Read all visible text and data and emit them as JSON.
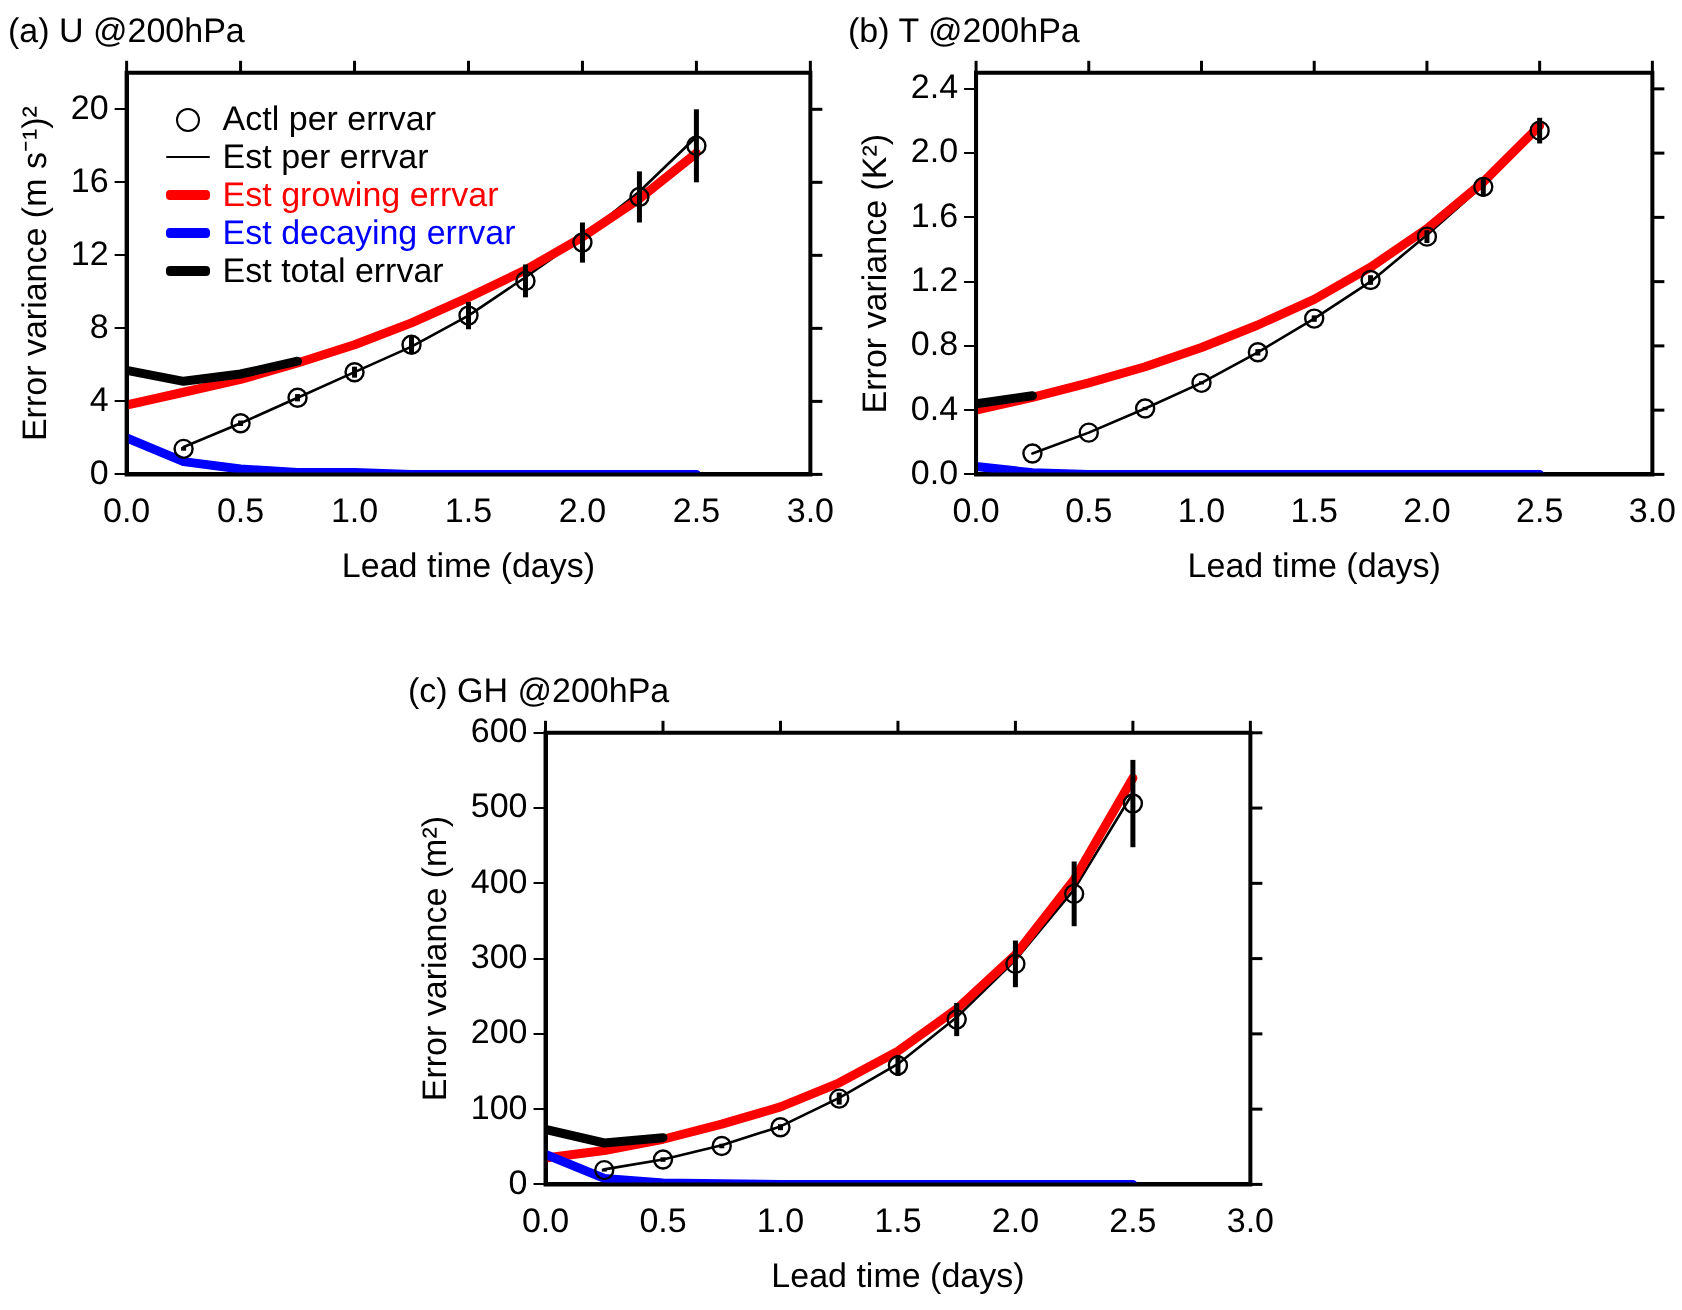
{
  "chart_data": [
    {
      "type": "line",
      "title": "(a) U @200hPa",
      "xlabel": "Lead time (days)",
      "ylabel": "Error variance (m s⁻¹)²",
      "xlim": [
        0,
        3
      ],
      "ylim": [
        0,
        22
      ],
      "xticks": [
        {
          "value": 0,
          "label": "0.0"
        },
        {
          "value": 0.5,
          "label": "0.5"
        },
        {
          "value": 1,
          "label": "1.0"
        },
        {
          "value": 1.5,
          "label": "1.5"
        },
        {
          "value": 2,
          "label": "2.0"
        },
        {
          "value": 2.5,
          "label": "2.5"
        },
        {
          "value": 3,
          "label": "3.0"
        }
      ],
      "yticks": [
        0,
        4,
        8,
        12,
        16,
        20
      ],
      "grid": false,
      "legend": "top left",
      "series": [
        {
          "name": "Actl per errvar",
          "type": "scatter",
          "marker": "circle",
          "color": "#000000",
          "x": [
            0.25,
            0.5,
            0.75,
            1,
            1.25,
            1.5,
            1.75,
            2,
            2.25,
            2.5
          ],
          "values": [
            1.4,
            2.8,
            4.2,
            5.6,
            7.1,
            8.7,
            10.6,
            12.7,
            15.2,
            18.0
          ],
          "errors": [
            0.1,
            0.15,
            0.2,
            0.3,
            0.5,
            0.75,
            0.9,
            1.1,
            1.4,
            2.0
          ]
        },
        {
          "name": "Est per errvar",
          "type": "line",
          "marker": "none",
          "color": "#000000",
          "x": [
            0.25,
            0.5,
            0.75,
            1,
            1.25,
            1.5,
            1.75,
            2,
            2.25,
            2.5
          ],
          "values": [
            1.5,
            2.8,
            4.2,
            5.6,
            7.0,
            8.7,
            10.8,
            13.0,
            15.5,
            18.5
          ]
        },
        {
          "name": "Est growing errvar",
          "type": "line",
          "marker": "none",
          "color": "#ff0000",
          "x": [
            0,
            0.25,
            0.5,
            0.75,
            1,
            1.25,
            1.5,
            1.75,
            2,
            2.25,
            2.5
          ],
          "values": [
            3.8,
            4.5,
            5.2,
            6.1,
            7.1,
            8.3,
            9.7,
            11.2,
            13.0,
            15.1,
            17.6
          ]
        },
        {
          "name": "Est decaying errvar",
          "type": "line",
          "marker": "none",
          "color": "#0000ff",
          "x": [
            0,
            0.25,
            0.5,
            0.75,
            1,
            1.25,
            1.5,
            1.75,
            2,
            2.25,
            2.5
          ],
          "values": [
            2.0,
            0.7,
            0.3,
            0.1,
            0.1,
            0,
            0,
            0,
            0,
            0,
            0
          ]
        },
        {
          "name": "Est total errvar",
          "type": "line",
          "marker": "none",
          "color": "#000000",
          "x": [
            0,
            0.25,
            0.5,
            0.75
          ],
          "values": [
            5.7,
            5.1,
            5.5,
            6.2
          ]
        }
      ]
    },
    {
      "type": "line",
      "title": "(b) T @200hPa",
      "xlabel": "Lead time (days)",
      "ylabel": "Error variance (K²)",
      "xlim": [
        0,
        3
      ],
      "ylim": [
        0,
        2.5
      ],
      "xticks": [
        {
          "value": 0,
          "label": "0.0"
        },
        {
          "value": 0.5,
          "label": "0.5"
        },
        {
          "value": 1,
          "label": "1.0"
        },
        {
          "value": 1.5,
          "label": "1.5"
        },
        {
          "value": 2,
          "label": "2.0"
        },
        {
          "value": 2.5,
          "label": "2.5"
        },
        {
          "value": 3,
          "label": "3.0"
        }
      ],
      "yticks": [
        {
          "value": 0,
          "label": "0.0"
        },
        {
          "value": 0.4,
          "label": "0.4"
        },
        {
          "value": 0.8,
          "label": "0.8"
        },
        {
          "value": 1.2,
          "label": "1.2"
        },
        {
          "value": 1.6,
          "label": "1.6"
        },
        {
          "value": 2,
          "label": "2.0"
        },
        {
          "value": 2.4,
          "label": "2.4"
        }
      ],
      "grid": false,
      "series": [
        {
          "type": "scatter",
          "marker": "circle",
          "color": "#000000",
          "x": [
            0.25,
            0.5,
            0.75,
            1,
            1.25,
            1.5,
            1.75,
            2,
            2.25,
            2.5
          ],
          "values": [
            0.13,
            0.26,
            0.41,
            0.57,
            0.76,
            0.97,
            1.21,
            1.48,
            1.79,
            2.14
          ],
          "errors": [
            null,
            null,
            0.01,
            0.01,
            0.02,
            0.02,
            0.03,
            0.04,
            0.06,
            0.08
          ]
        },
        {
          "type": "line",
          "marker": "none",
          "color": "#000000",
          "x": [
            0.25,
            0.5,
            0.75,
            1,
            1.25,
            1.5,
            1.75,
            2,
            2.25,
            2.5
          ],
          "values": [
            0.13,
            0.26,
            0.41,
            0.57,
            0.76,
            0.97,
            1.2,
            1.49,
            1.8,
            2.18
          ]
        },
        {
          "type": "line",
          "marker": "none",
          "color": "#ff0000",
          "x": [
            0,
            0.25,
            0.5,
            0.75,
            1,
            1.25,
            1.5,
            1.75,
            2,
            2.25,
            2.5
          ],
          "values": [
            0.4,
            0.48,
            0.57,
            0.67,
            0.79,
            0.93,
            1.09,
            1.29,
            1.53,
            1.82,
            2.17
          ]
        },
        {
          "type": "line",
          "marker": "none",
          "color": "#0000ff",
          "x": [
            0,
            0.25,
            0.5,
            0.75,
            1,
            1.25,
            1.5,
            1.75,
            2,
            2.25,
            2.5
          ],
          "values": [
            0.05,
            0.01,
            0,
            0,
            0,
            0,
            0,
            0,
            0,
            0,
            0
          ]
        },
        {
          "type": "line",
          "marker": "none",
          "color": "#000000",
          "x": [
            0,
            0.25
          ],
          "values": [
            0.44,
            0.49
          ]
        }
      ]
    },
    {
      "type": "line",
      "title": "(c) GH @200hPa",
      "xlabel": "Lead time (days)",
      "ylabel": "Error variance (m²)",
      "xlim": [
        0,
        3
      ],
      "ylim": [
        0,
        600
      ],
      "xticks": [
        {
          "value": 0,
          "label": "0.0"
        },
        {
          "value": 0.5,
          "label": "0.5"
        },
        {
          "value": 1,
          "label": "1.0"
        },
        {
          "value": 1.5,
          "label": "1.5"
        },
        {
          "value": 2,
          "label": "2.0"
        },
        {
          "value": 2.5,
          "label": "2.5"
        },
        {
          "value": 3,
          "label": "3.0"
        }
      ],
      "yticks": [
        0,
        100,
        200,
        300,
        400,
        500,
        600
      ],
      "grid": false,
      "series": [
        {
          "type": "scatter",
          "marker": "circle",
          "color": "#000000",
          "x": [
            0.25,
            0.5,
            0.75,
            1,
            1.25,
            1.5,
            1.75,
            2,
            2.25,
            2.5
          ],
          "values": [
            19,
            33,
            51,
            76,
            114,
            158,
            219,
            293,
            386,
            506
          ],
          "errors": [
            2,
            3,
            3,
            4,
            8,
            14,
            22,
            31,
            43,
            58
          ]
        },
        {
          "type": "line",
          "marker": "none",
          "color": "#000000",
          "x": [
            0.25,
            0.5,
            0.75,
            1,
            1.25,
            1.5,
            1.75,
            2,
            2.25,
            2.5
          ],
          "values": [
            20,
            33,
            52,
            77,
            115,
            160,
            222,
            298,
            392,
            520
          ]
        },
        {
          "type": "line",
          "marker": "none",
          "color": "#ff0000",
          "x": [
            0,
            0.25,
            0.5,
            0.75,
            1,
            1.25,
            1.5,
            1.75,
            2,
            2.25,
            2.5
          ],
          "values": [
            35,
            45,
            60,
            80,
            103,
            135,
            177,
            233,
            305,
            405,
            540
          ]
        },
        {
          "type": "line",
          "marker": "none",
          "color": "#0000ff",
          "x": [
            0,
            0.25,
            0.5,
            0.75,
            1,
            1.25,
            1.5,
            1.75,
            2,
            2.25,
            2.5
          ],
          "values": [
            40,
            8,
            2,
            1,
            0,
            0,
            0,
            0,
            0,
            0,
            0
          ]
        },
        {
          "type": "line",
          "marker": "none",
          "color": "#000000",
          "x": [
            0,
            0.25,
            0.5
          ],
          "values": [
            73,
            55,
            62
          ]
        }
      ]
    }
  ]
}
